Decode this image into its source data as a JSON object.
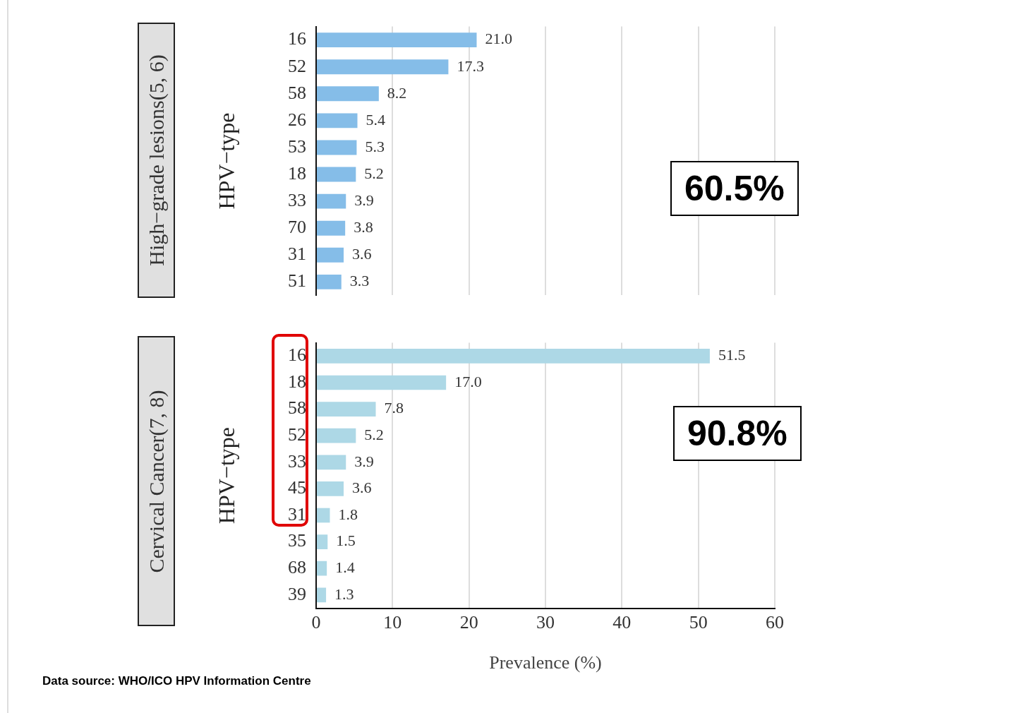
{
  "chart_data": [
    {
      "type": "bar",
      "orientation": "horizontal",
      "title": "High−grade lesions(5, 6)",
      "ylabel": "HPV−type",
      "categories": [
        "16",
        "52",
        "58",
        "26",
        "53",
        "18",
        "33",
        "70",
        "31",
        "51"
      ],
      "values": [
        21.0,
        17.3,
        8.2,
        5.4,
        5.3,
        5.2,
        3.9,
        3.8,
        3.6,
        3.3
      ],
      "value_labels": [
        "21.0",
        "17.3",
        "8.2",
        "5.4",
        "5.3",
        "5.2",
        "3.9",
        "3.8",
        "3.6",
        "3.3"
      ],
      "color": "#85bde8",
      "xlim": [
        0,
        60
      ],
      "xticks": [
        0,
        10,
        20,
        30,
        40,
        50,
        60
      ],
      "grid": "x",
      "tick_labels": "y",
      "annotations": [
        "60.5%"
      ]
    },
    {
      "type": "bar",
      "orientation": "horizontal",
      "title": "Cervical Cancer(7, 8)",
      "ylabel": "HPV−type",
      "xlabel": "Prevalence (%)",
      "categories": [
        "16",
        "18",
        "58",
        "52",
        "33",
        "45",
        "31",
        "35",
        "68",
        "39"
      ],
      "values": [
        51.5,
        17.0,
        7.8,
        5.2,
        3.9,
        3.6,
        1.8,
        1.5,
        1.4,
        1.3
      ],
      "value_labels": [
        "51.5",
        "17.0",
        "7.8",
        "5.2",
        "3.9",
        "3.6",
        "1.8",
        "1.5",
        "1.4",
        "1.3"
      ],
      "color": "#add8e6",
      "xlim": [
        0,
        60
      ],
      "xticks": [
        0,
        10,
        20,
        30,
        40,
        50,
        60
      ],
      "grid": "x",
      "annotations": [
        "90.8%",
        "Data source: WHO/ICO HPV Information Centre"
      ]
    }
  ]
}
